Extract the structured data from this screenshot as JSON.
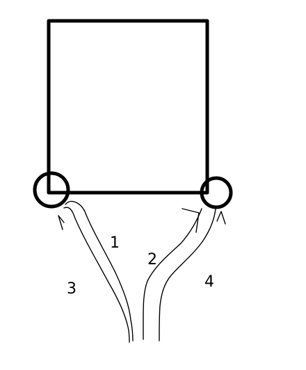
{
  "diagram": {
    "labels": {
      "path_1": "1",
      "path_2": "2",
      "path_3": "3",
      "path_4": "4"
    },
    "colors": {
      "stroke": "#000000",
      "background": "#ffffff"
    }
  }
}
